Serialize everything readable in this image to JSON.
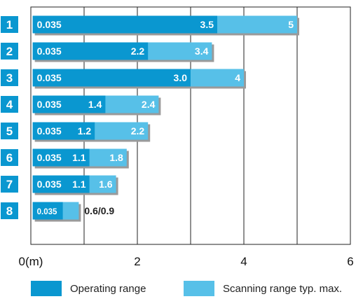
{
  "chart_data": {
    "type": "bar",
    "orientation": "horizontal",
    "stacked": "overlay",
    "categories": [
      "1",
      "2",
      "3",
      "4",
      "5",
      "6",
      "7",
      "8"
    ],
    "series": [
      {
        "name": "Operating range",
        "color": "#0a97d0",
        "min": [
          0.035,
          0.035,
          0.035,
          0.035,
          0.035,
          0.035,
          0.035,
          0.035
        ],
        "values": [
          3.5,
          2.2,
          3.0,
          1.4,
          1.2,
          1.1,
          1.1,
          0.6
        ]
      },
      {
        "name": "Scanning range typ. max.",
        "color": "#57c0e8",
        "values": [
          5,
          3.4,
          4,
          2.4,
          2.2,
          1.8,
          1.6,
          0.9
        ]
      }
    ],
    "min_labels": [
      "0.035",
      "0.035",
      "0.035",
      "0.035",
      "0.035",
      "0.035",
      "0.035",
      "0.035"
    ],
    "op_labels": [
      "3.5",
      "2.2",
      "3.0",
      "1.4",
      "1.2",
      "1.1",
      "1.1",
      ""
    ],
    "scan_labels": [
      "5",
      "3.4",
      "4",
      "2.4",
      "2.2",
      "1.8",
      "1.6",
      ""
    ],
    "combined_labels": [
      "",
      "",
      "",
      "",
      "",
      "",
      "",
      "0.6/0.9"
    ],
    "x_ticks": [
      "0(m)",
      "2",
      "4",
      "6"
    ],
    "xlim": [
      0,
      6
    ],
    "grid": "vertical-lines",
    "legend_position": "bottom",
    "row_label_color": "#0a97d0"
  }
}
